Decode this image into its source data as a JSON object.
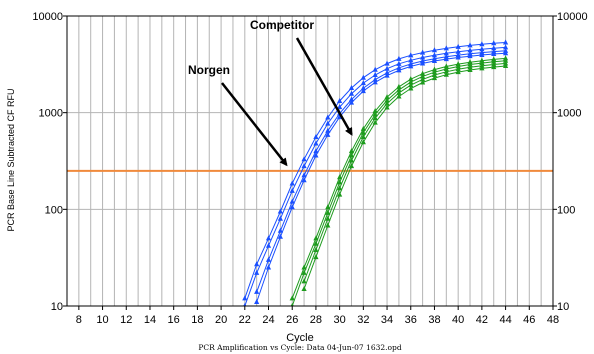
{
  "chart_data": {
    "type": "line",
    "x_label": "Cycle",
    "y_label": "PCR Base Line Subtracted CF RFU",
    "caption": "PCR Amplification vs Cycle: Data 04-Jun-07 1632.opd",
    "y_scale": "log",
    "xlim": [
      7,
      48
    ],
    "ylim": [
      10,
      10000
    ],
    "x_ticks": [
      8,
      10,
      12,
      14,
      16,
      18,
      20,
      22,
      24,
      26,
      28,
      30,
      32,
      34,
      36,
      38,
      40,
      42,
      44,
      46,
      48
    ],
    "y_ticks": [
      10,
      100,
      1000,
      10000
    ],
    "grid": true,
    "threshold": {
      "y": 250,
      "color": "#f08a3c"
    },
    "annotations": [
      {
        "text": "Norgen",
        "target_x": 25.5,
        "target_y": 290
      },
      {
        "text": "Competitor",
        "target_x": 31.0,
        "target_y": 600
      }
    ],
    "series": [
      {
        "group": "Norgen",
        "color": "#1a4fff",
        "x": [
          22,
          23,
          24,
          25,
          26,
          27,
          28,
          29,
          30,
          31,
          32,
          33,
          34,
          35,
          36,
          37,
          38,
          39,
          40,
          41,
          42,
          43,
          44
        ],
        "y": [
          12,
          27,
          50,
          95,
          185,
          330,
          560,
          890,
          1320,
          1800,
          2300,
          2780,
          3220,
          3600,
          3920,
          4180,
          4420,
          4620,
          4800,
          4960,
          5100,
          5220,
          5320
        ]
      },
      {
        "group": "Norgen",
        "color": "#1a4fff",
        "x": [
          22,
          23,
          24,
          25,
          26,
          27,
          28,
          29,
          30,
          31,
          32,
          33,
          34,
          35,
          36,
          37,
          38,
          39,
          40,
          41,
          42,
          43,
          44
        ],
        "y": [
          10,
          22,
          42,
          80,
          155,
          280,
          480,
          770,
          1140,
          1570,
          2020,
          2450,
          2850,
          3200,
          3480,
          3720,
          3930,
          4110,
          4270,
          4410,
          4530,
          4640,
          4730
        ]
      },
      {
        "group": "Norgen",
        "color": "#1a4fff",
        "x": [
          23,
          24,
          25,
          26,
          27,
          28,
          29,
          30,
          31,
          32,
          33,
          34,
          35,
          36,
          37,
          38,
          39,
          40,
          41,
          42,
          43,
          44
        ],
        "y": [
          14,
          30,
          60,
          120,
          225,
          400,
          650,
          980,
          1370,
          1790,
          2200,
          2580,
          2910,
          3190,
          3420,
          3620,
          3790,
          3940,
          4070,
          4180,
          4280,
          4360
        ]
      },
      {
        "group": "Norgen",
        "color": "#1a4fff",
        "x": [
          23,
          24,
          25,
          26,
          27,
          28,
          29,
          30,
          31,
          32,
          33,
          34,
          35,
          36,
          37,
          38,
          39,
          40,
          41,
          42,
          43,
          44
        ],
        "y": [
          11,
          25,
          52,
          105,
          200,
          360,
          590,
          900,
          1270,
          1670,
          2060,
          2420,
          2740,
          3010,
          3230,
          3420,
          3580,
          3720,
          3840,
          3950,
          4040,
          4120
        ]
      },
      {
        "group": "Competitor",
        "color": "#1d9b1d",
        "x": [
          26,
          27,
          28,
          29,
          30,
          31,
          32,
          33,
          34,
          35,
          36,
          37,
          38,
          39,
          40,
          41,
          42,
          43,
          44
        ],
        "y": [
          12,
          25,
          50,
          105,
          215,
          400,
          680,
          1040,
          1450,
          1850,
          2220,
          2530,
          2790,
          3000,
          3180,
          3330,
          3450,
          3560,
          3640
        ]
      },
      {
        "group": "Competitor",
        "color": "#1d9b1d",
        "x": [
          26,
          27,
          28,
          29,
          30,
          31,
          32,
          33,
          34,
          35,
          36,
          37,
          38,
          39,
          40,
          41,
          42,
          43,
          44
        ],
        "y": [
          10,
          22,
          44,
          92,
          190,
          360,
          620,
          960,
          1340,
          1720,
          2070,
          2370,
          2620,
          2830,
          3000,
          3150,
          3260,
          3360,
          3440
        ]
      },
      {
        "group": "Competitor",
        "color": "#1d9b1d",
        "x": [
          27,
          28,
          29,
          30,
          31,
          32,
          33,
          34,
          35,
          36,
          37,
          38,
          39,
          40,
          41,
          42,
          43,
          44
        ],
        "y": [
          18,
          38,
          80,
          165,
          320,
          560,
          880,
          1240,
          1600,
          1930,
          2210,
          2450,
          2650,
          2810,
          2950,
          3060,
          3150,
          3230
        ]
      },
      {
        "group": "Competitor",
        "color": "#1d9b1d",
        "x": [
          27,
          28,
          29,
          30,
          31,
          32,
          33,
          34,
          35,
          36,
          37,
          38,
          39,
          40,
          41,
          42,
          43,
          44
        ],
        "y": [
          15,
          32,
          68,
          142,
          280,
          495,
          790,
          1130,
          1470,
          1780,
          2050,
          2280,
          2470,
          2630,
          2760,
          2870,
          2960,
          3040
        ]
      }
    ]
  }
}
